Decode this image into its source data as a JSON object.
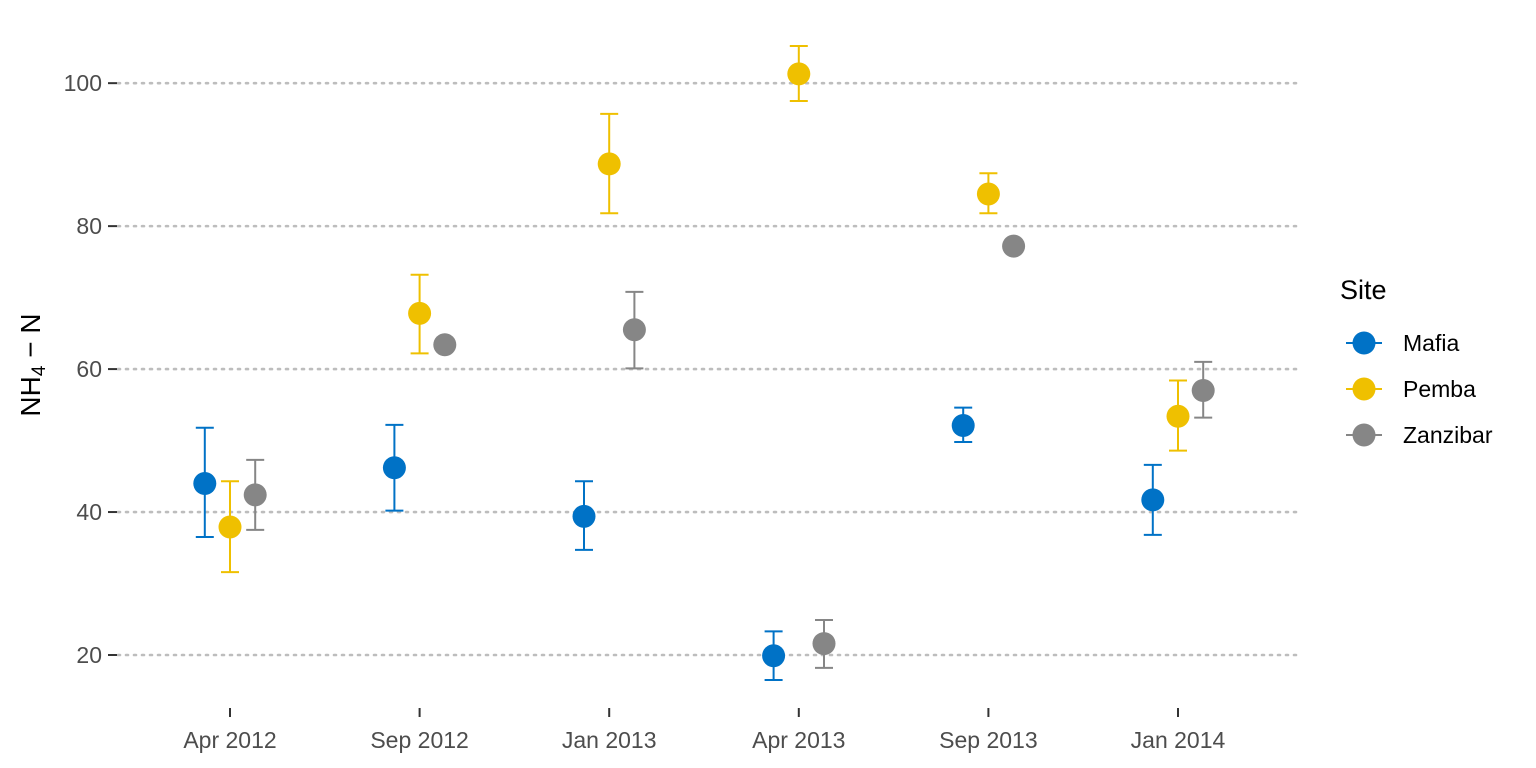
{
  "chart_data": {
    "type": "scatter",
    "subtype": "point-with-error-bars",
    "title": "",
    "xlabel": "",
    "ylabel": {
      "main": "NH",
      "subscript": "4",
      "suffix": " − N"
    },
    "ylim": [
      13,
      106
    ],
    "yticks": [
      20,
      40,
      60,
      80,
      100
    ],
    "x_categories": [
      "Apr 2012",
      "Sep 2012",
      "Jan 2013",
      "Apr 2013",
      "Sep 2013",
      "Jan 2014"
    ],
    "grid": "horizontal dotted major gridlines",
    "legend": {
      "title": "Site",
      "position": "right"
    },
    "series": [
      {
        "name": "Mafia",
        "color": "#0072C6",
        "points": [
          {
            "x": "Apr 2012",
            "y": 44.0,
            "ymin": 36.5,
            "ymax": 51.8
          },
          {
            "x": "Sep 2012",
            "y": 46.2,
            "ymin": 40.2,
            "ymax": 52.2
          },
          {
            "x": "Jan 2013",
            "y": 39.4,
            "ymin": 34.7,
            "ymax": 44.3
          },
          {
            "x": "Apr 2013",
            "y": 19.9,
            "ymin": 16.5,
            "ymax": 23.3
          },
          {
            "x": "Sep 2013",
            "y": 52.1,
            "ymin": 49.8,
            "ymax": 54.6
          },
          {
            "x": "Jan 2014",
            "y": 41.7,
            "ymin": 36.8,
            "ymax": 46.6
          }
        ]
      },
      {
        "name": "Pemba",
        "color": "#EFC000",
        "points": [
          {
            "x": "Apr 2012",
            "y": 37.9,
            "ymin": 31.6,
            "ymax": 44.3
          },
          {
            "x": "Sep 2012",
            "y": 67.8,
            "ymin": 62.2,
            "ymax": 73.2
          },
          {
            "x": "Jan 2013",
            "y": 88.7,
            "ymin": 81.8,
            "ymax": 95.7
          },
          {
            "x": "Apr 2013",
            "y": 101.3,
            "ymin": 97.5,
            "ymax": 105.2
          },
          {
            "x": "Sep 2013",
            "y": 84.5,
            "ymin": 81.8,
            "ymax": 87.4
          },
          {
            "x": "Jan 2014",
            "y": 53.4,
            "ymin": 48.6,
            "ymax": 58.4
          }
        ]
      },
      {
        "name": "Zanzibar",
        "color": "#868686",
        "points": [
          {
            "x": "Apr 2012",
            "y": 42.4,
            "ymin": 37.5,
            "ymax": 47.3
          },
          {
            "x": "Sep 2012",
            "y": 63.4,
            "ymin": 63.4,
            "ymax": 63.4
          },
          {
            "x": "Jan 2013",
            "y": 65.5,
            "ymin": 60.1,
            "ymax": 70.8
          },
          {
            "x": "Apr 2013",
            "y": 21.6,
            "ymin": 18.2,
            "ymax": 24.9
          },
          {
            "x": "Sep 2013",
            "y": 77.2,
            "ymin": 77.2,
            "ymax": 77.2
          },
          {
            "x": "Jan 2014",
            "y": 57.0,
            "ymin": 53.2,
            "ymax": 61.0
          }
        ]
      }
    ]
  }
}
